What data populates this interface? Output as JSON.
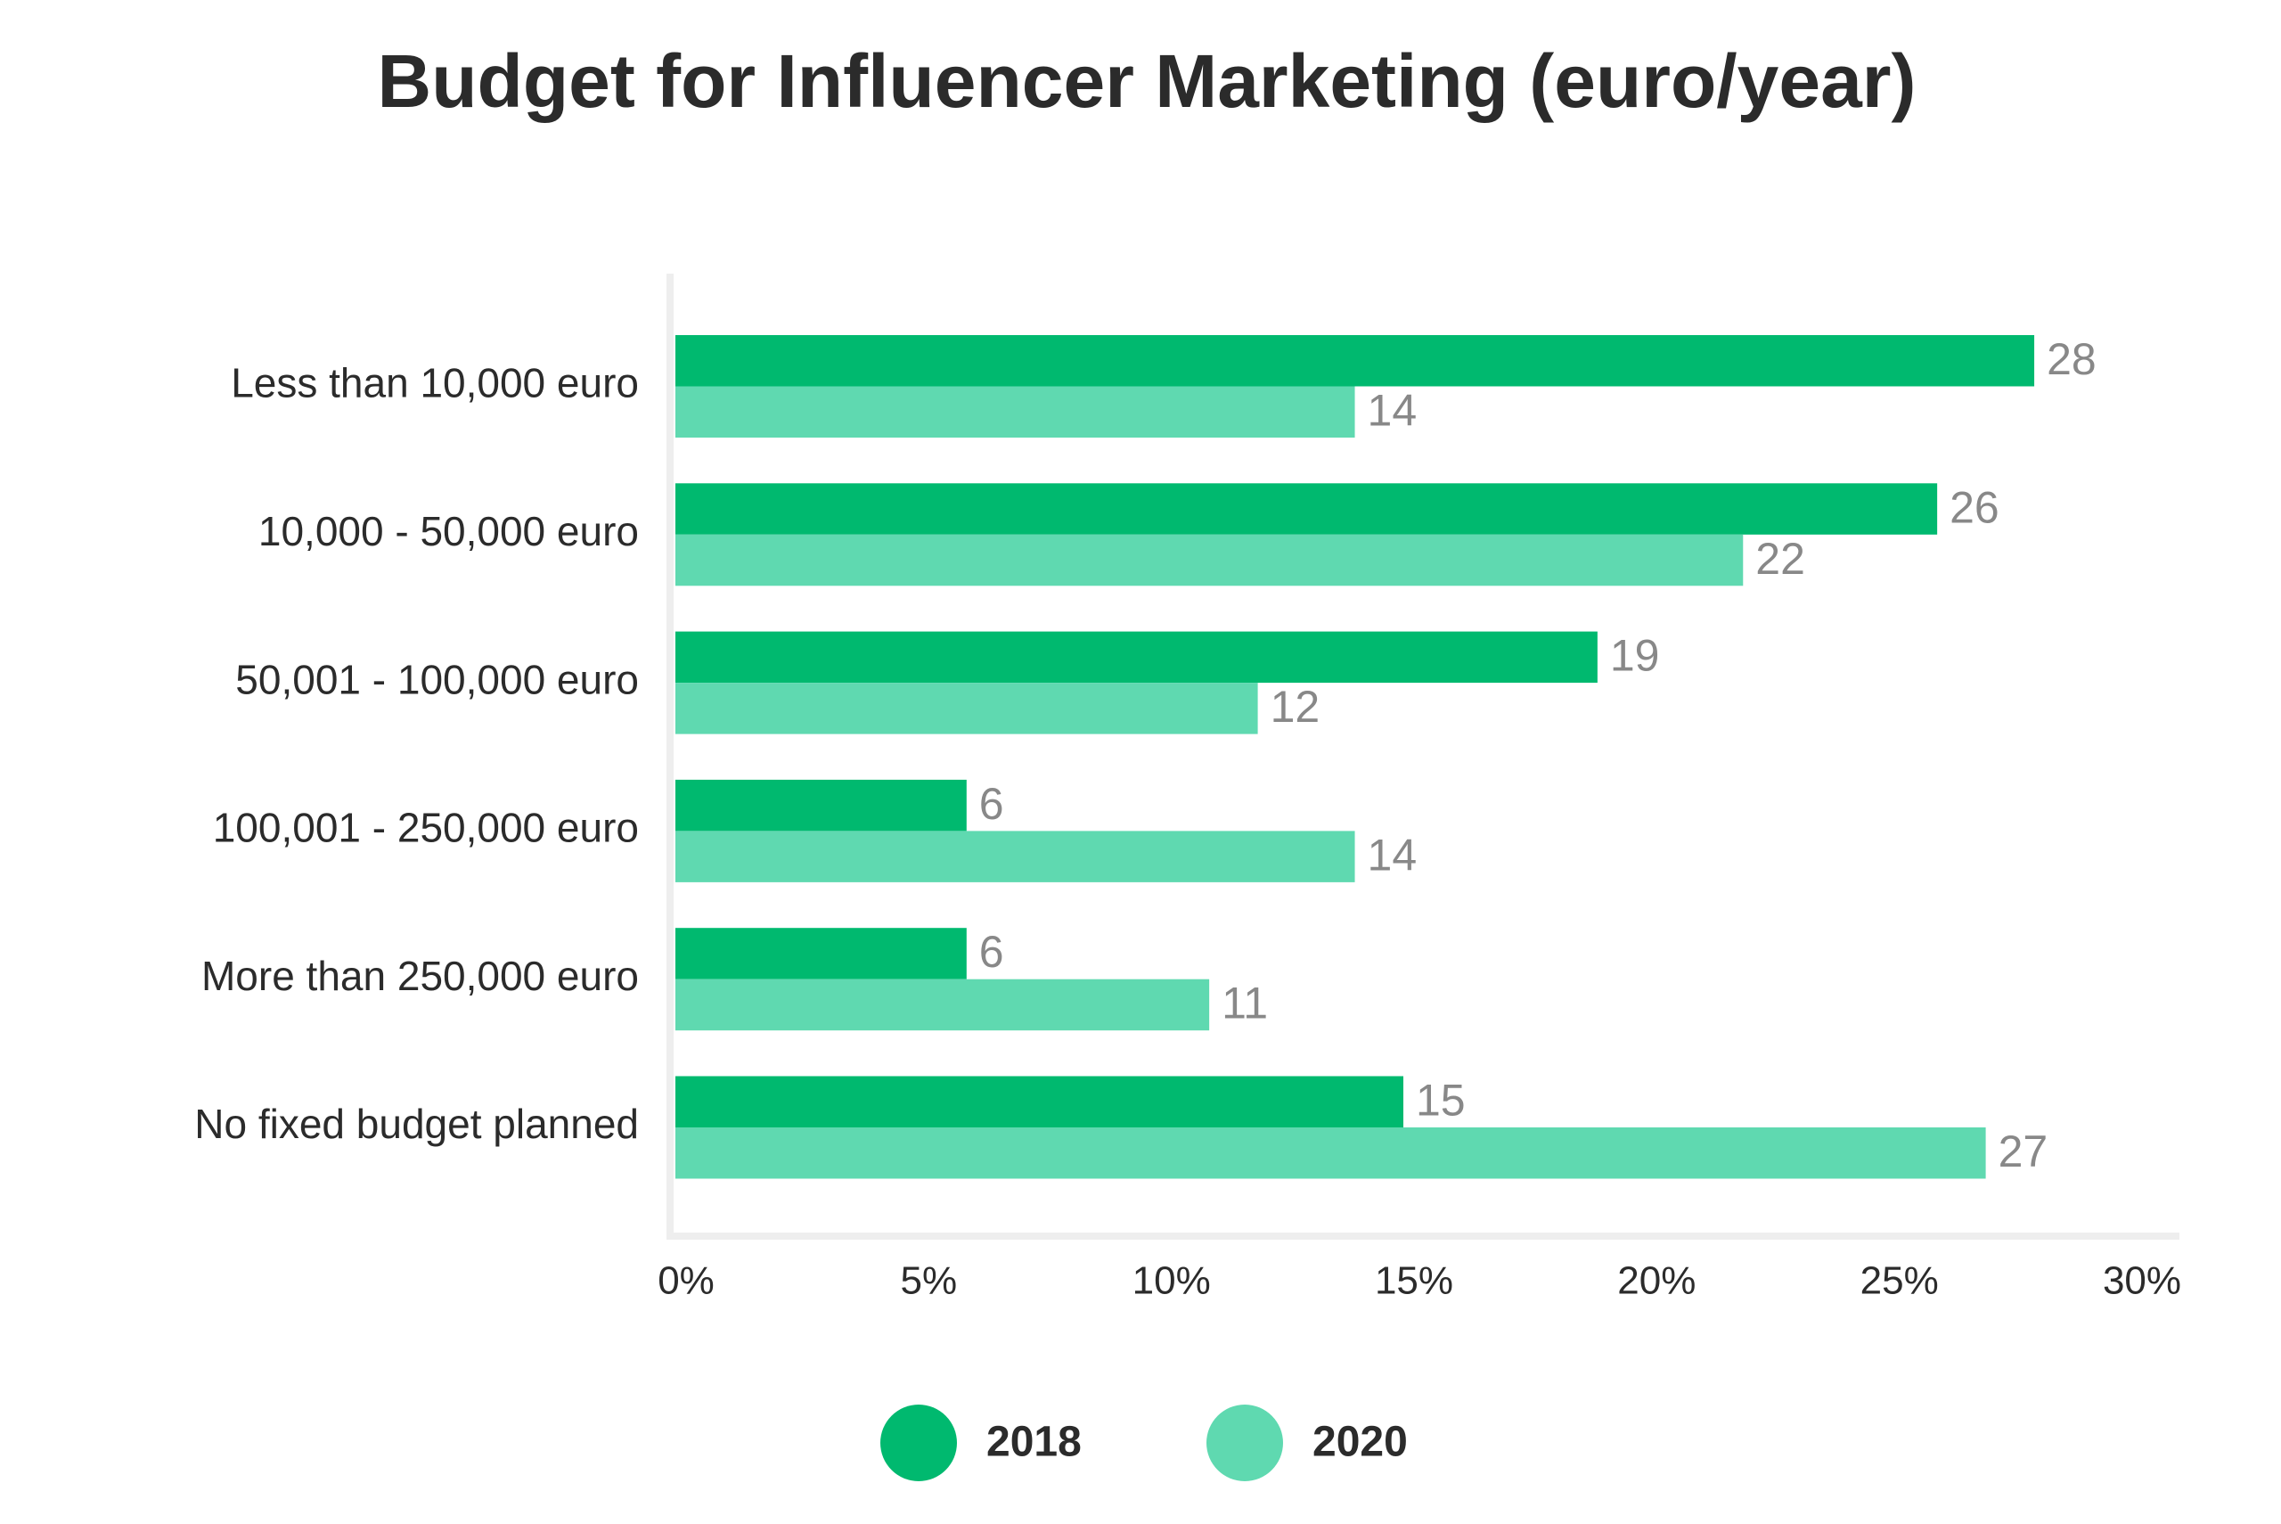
{
  "chart_data": {
    "type": "bar",
    "orientation": "horizontal",
    "title": "Budget for Influencer Marketing (euro/year)",
    "categories": [
      "Less than 10,000 euro",
      "10,000 - 50,000 euro",
      "50,001 - 100,000 euro",
      "100,001 - 250,000 euro",
      "More than 250,000 euro",
      "No fixed budget planned"
    ],
    "series": [
      {
        "name": "2018",
        "color": "#00b96f",
        "values": [
          28,
          26,
          19,
          6,
          6,
          15
        ]
      },
      {
        "name": "2020",
        "color": "#5fd9b0",
        "values": [
          14,
          22,
          12,
          14,
          11,
          27
        ]
      }
    ],
    "xlim": [
      0,
      30
    ],
    "xticks": [
      {
        "value": 0,
        "label": "0%"
      },
      {
        "value": 5,
        "label": "5%"
      },
      {
        "value": 10,
        "label": "10%"
      },
      {
        "value": 15,
        "label": "15%"
      },
      {
        "value": 20,
        "label": "20%"
      },
      {
        "value": 25,
        "label": "25%"
      },
      {
        "value": 30,
        "label": "30%"
      }
    ],
    "grid": false,
    "legend": "bottom"
  }
}
